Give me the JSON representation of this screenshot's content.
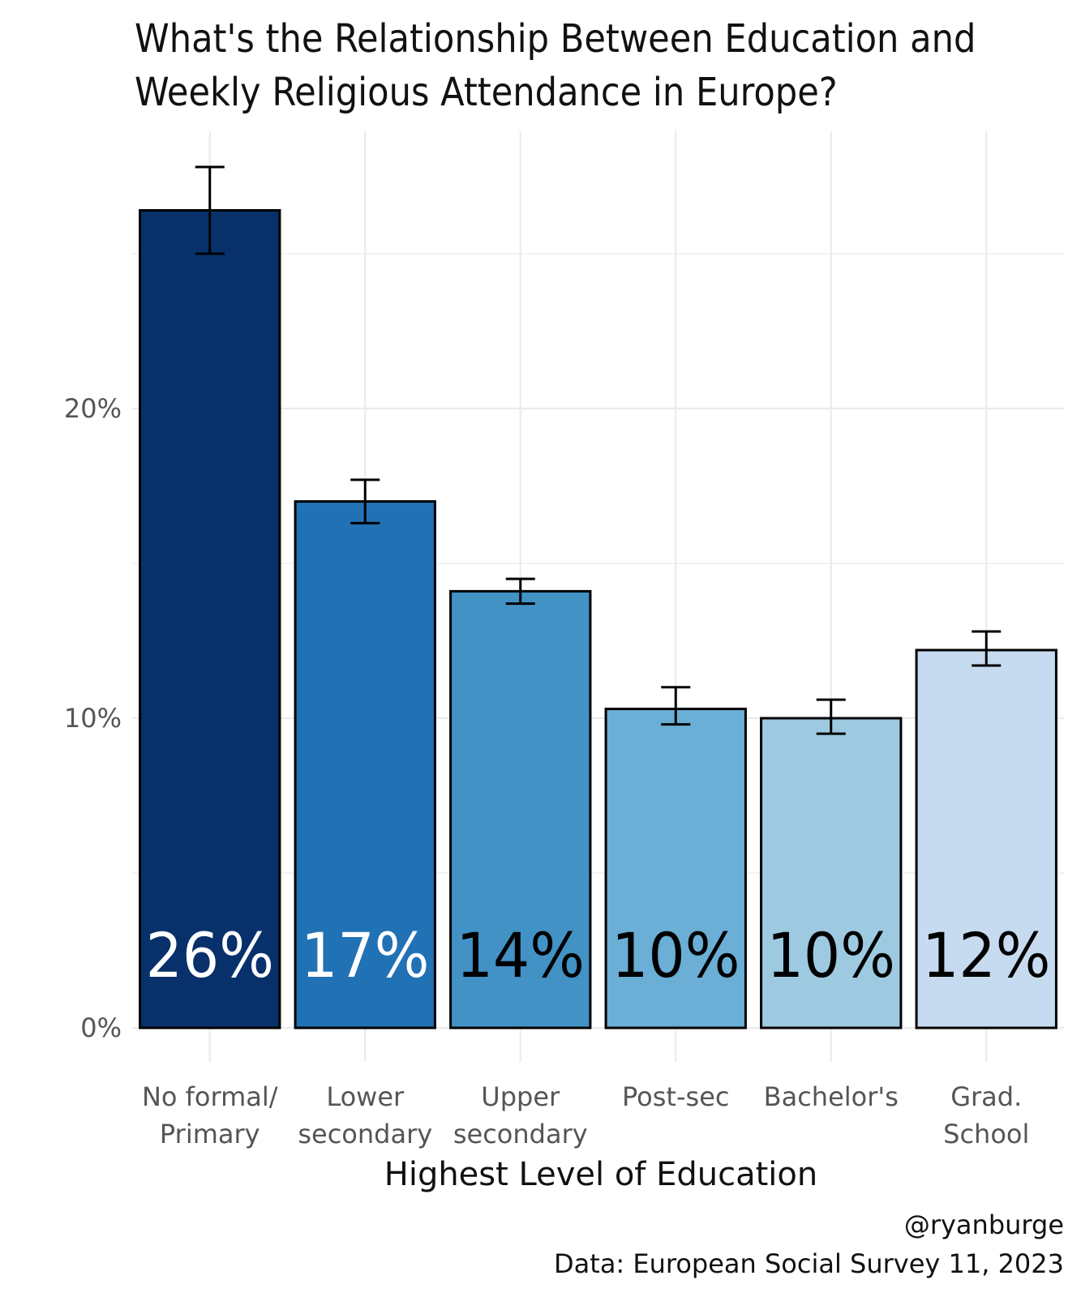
{
  "chart_data": {
    "type": "bar",
    "title_lines": [
      "What's the Relationship Between Education and",
      "Weekly Religious Attendance in Europe?"
    ],
    "xlabel": "Highest Level of Education",
    "ylabel": "",
    "ylim": [
      0,
      29
    ],
    "yticks": [
      0,
      10,
      20
    ],
    "ytick_labels": [
      "0%",
      "10%",
      "20%"
    ],
    "grid": true,
    "categories": [
      [
        "No formal/",
        "Primary"
      ],
      [
        "Lower",
        "secondary"
      ],
      [
        "Upper",
        "secondary"
      ],
      [
        "Post-sec"
      ],
      [
        "Bachelor's"
      ],
      [
        "Grad.",
        "School"
      ]
    ],
    "values": [
      26.4,
      17.0,
      14.1,
      10.3,
      10.0,
      12.2
    ],
    "error_low": [
      25.0,
      16.3,
      13.7,
      9.8,
      9.5,
      11.7
    ],
    "error_high": [
      27.8,
      17.7,
      14.5,
      11.0,
      10.6,
      12.8
    ],
    "data_labels": [
      "26%",
      "17%",
      "14%",
      "10%",
      "10%",
      "12%"
    ],
    "bar_colors": [
      "#08306b",
      "#2171b5",
      "#4292c6",
      "#6baed6",
      "#9ecae1",
      "#c6dbef"
    ],
    "label_colors": [
      "#ffffff",
      "#ffffff",
      "#000000",
      "#000000",
      "#000000",
      "#000000"
    ],
    "caption_lines": [
      "@ryanburge",
      "Data: European Social Survey 11, 2023"
    ]
  }
}
